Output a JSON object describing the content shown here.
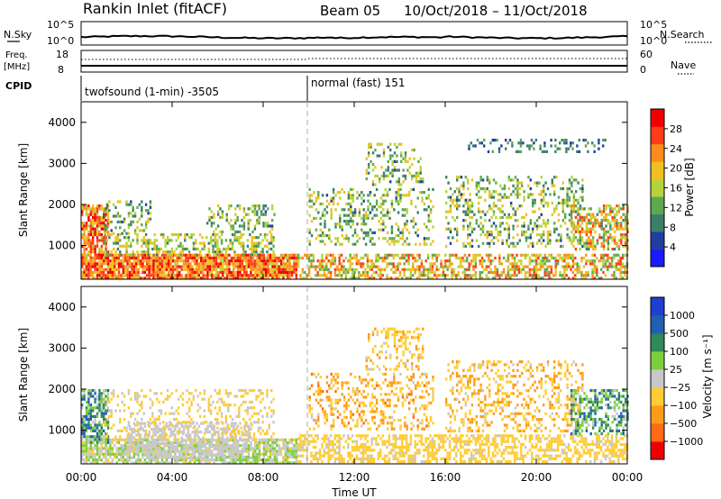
{
  "header": {
    "title": "Rankin Inlet (fitACF)",
    "beam": "Beam 05",
    "date_range": "10/Oct/2018 – 11/Oct/2018"
  },
  "nsky_panel": {
    "left_label": "N.Sky",
    "right_label": "N.Search",
    "left_ticks": [
      "10^5",
      "10^0"
    ],
    "right_ticks": [
      "10^5",
      "10^0"
    ]
  },
  "freq_panel": {
    "left_label_1": "Freq.",
    "left_label_2": "[MHz]",
    "right_label": "Nave",
    "left_ticks": [
      "18",
      "8"
    ],
    "right_ticks": [
      "60",
      "0"
    ]
  },
  "cpid_panel": {
    "label": "CPID",
    "segments": [
      {
        "text": "twofsound (1-min) -3505",
        "start_hour": 0
      },
      {
        "text": "normal (fast) 151",
        "start_hour": 10
      }
    ]
  },
  "colors": {
    "power_scale": [
      "#1a1aff",
      "#1f3fa0",
      "#3b7f6a",
      "#5fa84f",
      "#b7d33a",
      "#f0c020",
      "#ff8c1a",
      "#ff3b1a",
      "#ee0000"
    ],
    "velocity_scale": [
      "#ee0000",
      "#ff6a14",
      "#ff9a1a",
      "#ffcc33",
      "#c8c8c8",
      "#7ccf3a",
      "#2f8a5a",
      "#2060b0",
      "#1e3fd0"
    ]
  },
  "chart_data": [
    {
      "type": "heatmap",
      "name": "power",
      "ylabel": "Slant Range [km]",
      "xlabel": "",
      "yticks": [
        1000,
        2000,
        3000,
        4000
      ],
      "xticks": [
        "00:00",
        "04:00",
        "08:00",
        "12:00",
        "16:00",
        "20:00",
        "00:00"
      ],
      "xlim_hours": [
        0,
        24
      ],
      "ylim_km": [
        180,
        4500
      ],
      "colorbar": {
        "label": "Power [dB]",
        "ticks": [
          "28",
          "24",
          "20",
          "16",
          "12",
          "8",
          "4"
        ],
        "range": [
          0,
          30
        ]
      },
      "scatter_regions": [
        {
          "x0": 0.0,
          "x1": 9.5,
          "y0": 180,
          "y1": 800,
          "v0": 16,
          "v1": 30,
          "density": 0.9
        },
        {
          "x0": 0.0,
          "x1": 1.2,
          "y0": 700,
          "y1": 2000,
          "v0": 14,
          "v1": 30,
          "density": 0.75
        },
        {
          "x0": 1.0,
          "x1": 8.5,
          "y0": 800,
          "y1": 1300,
          "v0": 8,
          "v1": 20,
          "density": 0.45
        },
        {
          "x0": 1.0,
          "x1": 3.0,
          "y0": 1300,
          "y1": 2100,
          "v0": 6,
          "v1": 18,
          "density": 0.3
        },
        {
          "x0": 5.5,
          "x1": 8.5,
          "y0": 1300,
          "y1": 2000,
          "v0": 6,
          "v1": 18,
          "density": 0.3
        },
        {
          "x0": 9.5,
          "x1": 24.0,
          "y0": 200,
          "y1": 800,
          "v0": 10,
          "v1": 26,
          "density": 0.55
        },
        {
          "x0": 10.0,
          "x1": 15.5,
          "y0": 1000,
          "y1": 2400,
          "v0": 6,
          "v1": 20,
          "density": 0.3
        },
        {
          "x0": 12.5,
          "x1": 15.0,
          "y0": 2500,
          "y1": 3500,
          "v0": 6,
          "v1": 20,
          "density": 0.3
        },
        {
          "x0": 16.0,
          "x1": 22.0,
          "y0": 1000,
          "y1": 2700,
          "v0": 6,
          "v1": 20,
          "density": 0.3
        },
        {
          "x0": 21.5,
          "x1": 24.0,
          "y0": 900,
          "y1": 2000,
          "v0": 8,
          "v1": 26,
          "density": 0.55
        },
        {
          "x0": 17.0,
          "x1": 23.0,
          "y0": 3300,
          "y1": 3600,
          "v0": 4,
          "v1": 12,
          "density": 0.25
        }
      ]
    },
    {
      "type": "heatmap",
      "name": "velocity",
      "ylabel": "Slant Range [km]",
      "xlabel": "Time UT",
      "yticks": [
        1000,
        2000,
        3000,
        4000
      ],
      "xticks": [
        "00:00",
        "04:00",
        "08:00",
        "12:00",
        "16:00",
        "20:00",
        "00:00"
      ],
      "xlim_hours": [
        0,
        24
      ],
      "ylim_km": [
        180,
        4500
      ],
      "colorbar": {
        "label": "Velocity [m s⁻¹]",
        "ticks": [
          "1000",
          "500",
          "100",
          "25",
          "−25",
          "−100",
          "−500",
          "−1000"
        ],
        "range": [
          -1200,
          1200
        ]
      },
      "scatter_regions": [
        {
          "x0": 0.0,
          "x1": 9.5,
          "y0": 180,
          "y1": 800,
          "v0": -200,
          "v1": 300,
          "density": 0.8
        },
        {
          "x0": 0.0,
          "x1": 1.2,
          "y0": 700,
          "y1": 2000,
          "v0": -50,
          "v1": 900,
          "density": 0.7
        },
        {
          "x0": 2.0,
          "x1": 7.5,
          "y0": 300,
          "y1": 1200,
          "v0": -25,
          "v1": 25,
          "density": 0.5
        },
        {
          "x0": 1.0,
          "x1": 8.5,
          "y0": 800,
          "y1": 2000,
          "v0": -300,
          "v1": -50,
          "density": 0.25
        },
        {
          "x0": 9.5,
          "x1": 24.0,
          "y0": 200,
          "y1": 900,
          "v0": -400,
          "v1": -80,
          "density": 0.55
        },
        {
          "x0": 10.0,
          "x1": 15.5,
          "y0": 1000,
          "y1": 2400,
          "v0": -700,
          "v1": -100,
          "density": 0.3
        },
        {
          "x0": 12.5,
          "x1": 15.0,
          "y0": 2500,
          "y1": 3500,
          "v0": -500,
          "v1": -100,
          "density": 0.3
        },
        {
          "x0": 16.0,
          "x1": 22.0,
          "y0": 1000,
          "y1": 2700,
          "v0": -600,
          "v1": -100,
          "density": 0.3
        },
        {
          "x0": 21.5,
          "x1": 24.0,
          "y0": 900,
          "y1": 2000,
          "v0": -25,
          "v1": 800,
          "density": 0.55
        }
      ]
    }
  ]
}
